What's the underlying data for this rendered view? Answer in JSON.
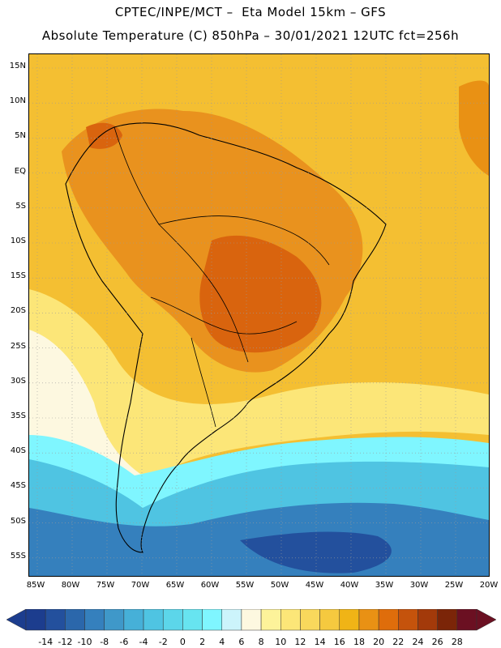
{
  "header": {
    "line1": "CPTEC/INPE/MCT –  Eta Model 15km – GFS",
    "line2": "Absolute Temperature (C) 850hPa – 30/01/2021 12UTC fct=256h"
  },
  "lat_labels": [
    "15N",
    "10N",
    "5N",
    "EQ",
    "5S",
    "10S",
    "15S",
    "20S",
    "25S",
    "30S",
    "35S",
    "40S",
    "45S",
    "50S",
    "55S"
  ],
  "lon_labels": [
    "85W",
    "80W",
    "75W",
    "70W",
    "65W",
    "60W",
    "55W",
    "50W",
    "45W",
    "40W",
    "35W",
    "30W",
    "25W",
    "20W"
  ],
  "colorbar": {
    "labels": [
      "-14",
      "-12",
      "-10",
      "-8",
      "-6",
      "-4",
      "-2",
      "0",
      "2",
      "4",
      "6",
      "8",
      "10",
      "12",
      "14",
      "16",
      "18",
      "20",
      "22",
      "24",
      "26",
      "28"
    ],
    "colors": [
      "#1c3d8e",
      "#23509d",
      "#2b67ab",
      "#3580bd",
      "#3f98c9",
      "#46b0d8",
      "#4fc4e2",
      "#5cd6ea",
      "#67e4f0",
      "#7ff6ff",
      "#ccf4fb",
      "#fdf8e0",
      "#fdf39a",
      "#fce678",
      "#f9d85c",
      "#f5c93f",
      "#f0b416",
      "#e99114",
      "#df6d0b",
      "#c5530c",
      "#a33a0a",
      "#7b2508",
      "#6b1022"
    ]
  }
}
